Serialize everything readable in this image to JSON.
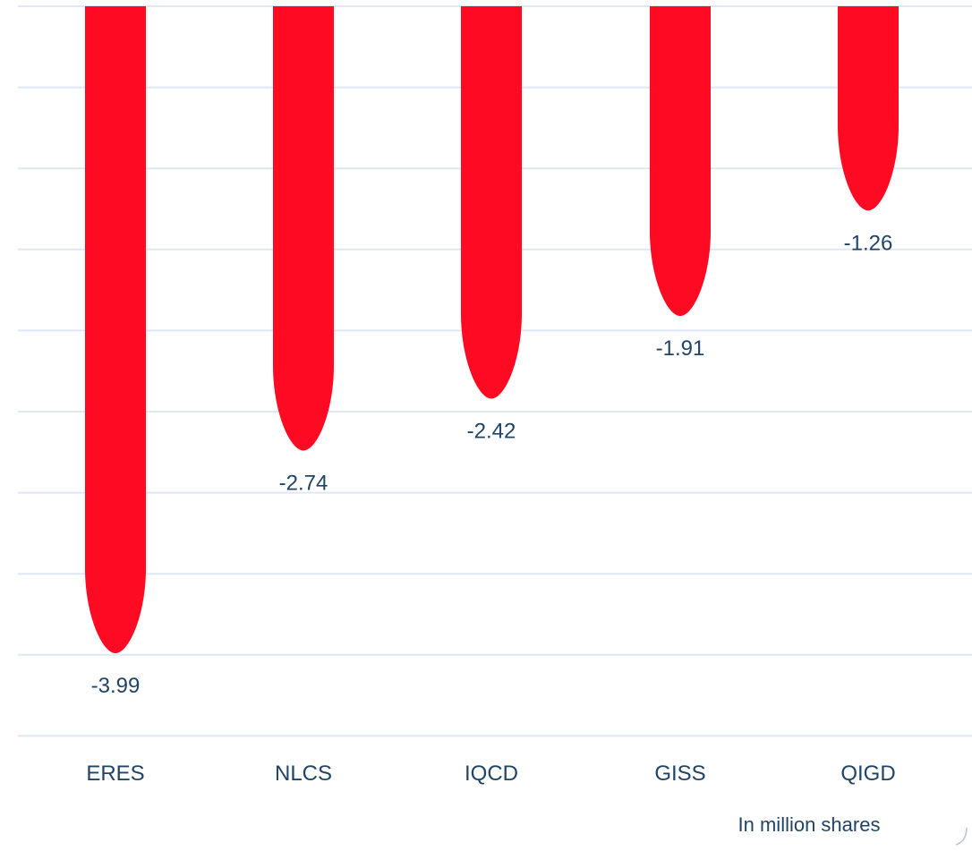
{
  "chart_data": {
    "type": "bar",
    "categories": [
      "ERES",
      "NLCS",
      "IQCD",
      "GISS",
      "QIGD"
    ],
    "values": [
      -3.99,
      -2.74,
      -2.42,
      -1.91,
      -1.26
    ],
    "value_labels": [
      "-3.99",
      "-2.74",
      "-2.42",
      "-1.91",
      "-1.26"
    ],
    "unit_note": "In million shares",
    "ylim": [
      -4.5,
      0
    ],
    "grid": true,
    "colors": {
      "bar": "#ff0a23",
      "text": "#1f4468",
      "grid": "#dfe8f3"
    }
  }
}
